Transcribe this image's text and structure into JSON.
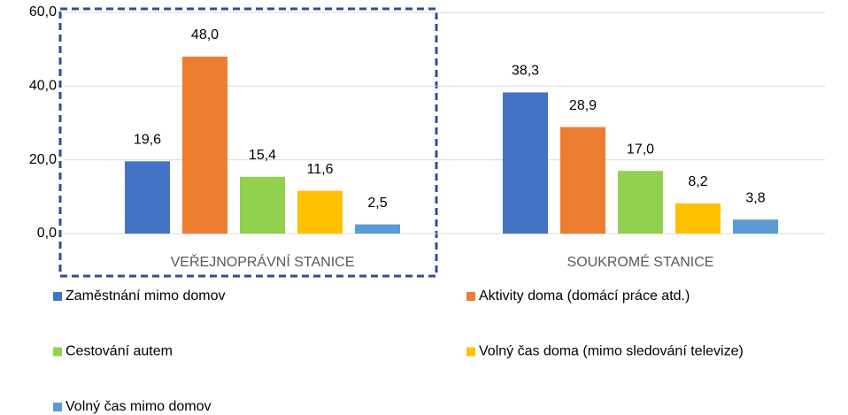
{
  "chart_data": {
    "type": "bar",
    "categories": [
      "VEŘEJNOPRÁVNÍ STANICE",
      "SOUKROMÉ STANICE"
    ],
    "series": [
      {
        "name": "Zaměstnání mimo domov",
        "color": "#4472c4",
        "values": [
          19.6,
          38.3
        ],
        "value_labels": [
          "19,6",
          "38,3"
        ]
      },
      {
        "name": "Aktivity doma (domácí práce atd.)",
        "color": "#ed7d31",
        "values": [
          48.0,
          28.9
        ],
        "value_labels": [
          "48,0",
          "28,9"
        ]
      },
      {
        "name": "Cestování autem",
        "color": "#92d050",
        "values": [
          15.4,
          17.0
        ],
        "value_labels": [
          "15,4",
          "17,0"
        ]
      },
      {
        "name": "Volný čas doma (mimo sledování televize)",
        "color": "#ffc000",
        "values": [
          11.6,
          8.2
        ],
        "value_labels": [
          "11,6",
          "8,2"
        ]
      },
      {
        "name": "Volný čas mimo domov",
        "color": "#5b9bd5",
        "values": [
          2.5,
          3.8
        ],
        "value_labels": [
          "2,5",
          "3,8"
        ]
      }
    ],
    "ylim": [
      0,
      60
    ],
    "yticks": [
      {
        "value": 0,
        "label": "0,0"
      },
      {
        "value": 20,
        "label": "20,0"
      },
      {
        "value": 40,
        "label": "40,0"
      },
      {
        "value": 60,
        "label": "60,0"
      }
    ],
    "grid": true,
    "legend": "bottom"
  }
}
